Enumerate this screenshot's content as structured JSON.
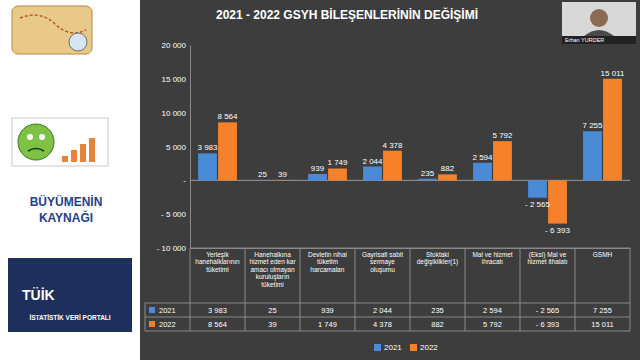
{
  "chart_data": {
    "type": "bar",
    "title": "2021 - 2022 GSYH BİLEŞENLERİNİN DEĞİŞİMİ",
    "categories": [
      "Yerleşik hanehalklarının tüketimi",
      "Hanehalkına hizmet eden kar amacı olmayan kuruluşların tüketimi",
      "Devletin nihai tüketim harcamaları",
      "Gayrisafi sabit sermaye oluşumu",
      "Stoktaki değişiklikler(1)",
      "Mal ve hizmet ihracatı",
      "(Eksi) Mal ve hizmet ithalatı",
      "GSMH"
    ],
    "series": [
      {
        "name": "2021",
        "color": "#4a8ad6",
        "values": [
          3983,
          25,
          939,
          2044,
          235,
          2594,
          -2565,
          7255
        ],
        "value_labels": [
          "3 983",
          "25",
          "939",
          "2 044",
          "235",
          "2 594",
          "- 2 565",
          "7 255"
        ]
      },
      {
        "name": "2022",
        "color": "#f5822a",
        "values": [
          8564,
          39,
          1749,
          4378,
          882,
          5792,
          -6393,
          15011
        ],
        "value_labels": [
          "8 564",
          "39",
          "1 749",
          "4 378",
          "882",
          "5 792",
          "- 6 393",
          "15 011"
        ]
      }
    ],
    "ylim": [
      -10000,
      20000
    ],
    "yticks": [
      {
        "value": -10000,
        "label": "- 10 000"
      },
      {
        "value": -5000,
        "label": "- 5 000"
      },
      {
        "value": 0,
        "label": "-"
      },
      {
        "value": 5000,
        "label": "5 000"
      },
      {
        "value": 10000,
        "label": "10 000"
      },
      {
        "value": 15000,
        "label": "15 000"
      },
      {
        "value": 20000,
        "label": "20 000"
      }
    ],
    "grid": false,
    "data_labels": true,
    "legend": "bottom"
  },
  "slide": {
    "section_title": "BÜYÜMENİN KAYNAĞI",
    "presenter": "Erhan YURDER",
    "logo": "TÜİK",
    "portal": "İSTATİSTİK VERİ PORTALI"
  }
}
